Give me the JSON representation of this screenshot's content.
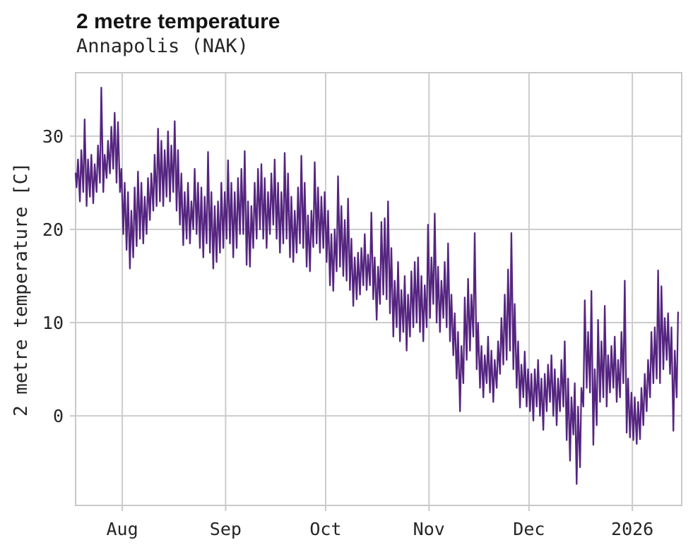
{
  "chart_data": {
    "type": "line",
    "title": "2 metre temperature",
    "subtitle": "Annapolis (NAK)",
    "ylabel": "2 metre temperature [C]",
    "xlabel": "",
    "legend": "none",
    "grid": true,
    "line_color": "#552580",
    "grid_color": "#cccccc",
    "background_color": "#ffffff",
    "x_unit": "days-since-series-start (series spans mid-July to mid-January)",
    "xlim_days": [
      0,
      181.8
    ],
    "ylim": [
      -9.6,
      36.8
    ],
    "y_ticks": [
      {
        "label": "0",
        "value": 0
      },
      {
        "label": "10",
        "value": 10
      },
      {
        "label": "20",
        "value": 20
      },
      {
        "label": "30",
        "value": 30
      }
    ],
    "x_ticks": [
      {
        "label": "Aug",
        "day": 14
      },
      {
        "label": "Sep",
        "day": 45
      },
      {
        "label": "Oct",
        "day": 75
      },
      {
        "label": "Nov",
        "day": 106
      },
      {
        "label": "Dec",
        "day": 136
      },
      {
        "label": "2026",
        "day": 167
      }
    ],
    "series_name": "2 metre temperature [C]",
    "daily_min_max_comment": "one [min,max] pair per day, day 0 = series start (~Jul 18); rendered as diurnal zigzag",
    "daily_min_max": [
      [
        24.5,
        27.5
      ],
      [
        23.0,
        28.5
      ],
      [
        24.0,
        31.8
      ],
      [
        22.5,
        27.5
      ],
      [
        23.5,
        28.0
      ],
      [
        22.8,
        27.0
      ],
      [
        24.0,
        29.0
      ],
      [
        25.0,
        35.2
      ],
      [
        24.0,
        28.0
      ],
      [
        25.5,
        29.5
      ],
      [
        26.0,
        31.0
      ],
      [
        26.5,
        32.5
      ],
      [
        25.0,
        31.5
      ],
      [
        24.0,
        26.5
      ],
      [
        19.5,
        25.0
      ],
      [
        17.8,
        24.0
      ],
      [
        15.8,
        22.0
      ],
      [
        17.0,
        24.5
      ],
      [
        18.2,
        26.2
      ],
      [
        19.0,
        25.0
      ],
      [
        18.5,
        23.5
      ],
      [
        19.5,
        25.5
      ],
      [
        21.0,
        26.0
      ],
      [
        22.0,
        28.0
      ],
      [
        22.5,
        30.8
      ],
      [
        23.0,
        29.5
      ],
      [
        22.5,
        28.5
      ],
      [
        23.5,
        30.5
      ],
      [
        23.0,
        29.0
      ],
      [
        24.0,
        31.6
      ],
      [
        22.0,
        28.5
      ],
      [
        20.5,
        26.0
      ],
      [
        18.3,
        24.0
      ],
      [
        19.0,
        25.0
      ],
      [
        18.5,
        23.0
      ],
      [
        20.0,
        26.5
      ],
      [
        19.5,
        25.0
      ],
      [
        18.0,
        24.5
      ],
      [
        17.0,
        23.5
      ],
      [
        18.5,
        28.3
      ],
      [
        17.5,
        24.0
      ],
      [
        15.8,
        22.5
      ],
      [
        16.5,
        23.0
      ],
      [
        17.5,
        25.0
      ],
      [
        18.0,
        24.0
      ],
      [
        19.0,
        27.4
      ],
      [
        18.5,
        25.0
      ],
      [
        17.0,
        24.0
      ],
      [
        18.0,
        25.5
      ],
      [
        19.5,
        26.5
      ],
      [
        19.5,
        28.4
      ],
      [
        16.2,
        23.0
      ],
      [
        16.0,
        22.5
      ],
      [
        18.0,
        25.0
      ],
      [
        19.0,
        26.5
      ],
      [
        20.0,
        27.0
      ],
      [
        19.0,
        25.5
      ],
      [
        18.0,
        24.0
      ],
      [
        19.5,
        26.0
      ],
      [
        20.5,
        27.5
      ],
      [
        19.0,
        25.0
      ],
      [
        17.5,
        24.0
      ],
      [
        18.5,
        28.2
      ],
      [
        19.0,
        26.0
      ],
      [
        17.0,
        23.5
      ],
      [
        16.5,
        22.0
      ],
      [
        17.5,
        24.5
      ],
      [
        18.5,
        27.9
      ],
      [
        18.0,
        25.0
      ],
      [
        16.0,
        21.5
      ],
      [
        15.5,
        22.0
      ],
      [
        18.1,
        27.2
      ],
      [
        18.5,
        24.5
      ],
      [
        17.5,
        23.5
      ],
      [
        18.0,
        24.0
      ],
      [
        16.5,
        22.0
      ],
      [
        14.0,
        19.5
      ],
      [
        13.4,
        20.0
      ],
      [
        15.5,
        25.7
      ],
      [
        16.0,
        22.5
      ],
      [
        15.0,
        21.0
      ],
      [
        14.5,
        23.3
      ],
      [
        13.5,
        19.0
      ],
      [
        11.8,
        17.0
      ],
      [
        12.5,
        17.5
      ],
      [
        13.0,
        18.0
      ],
      [
        14.0,
        19.5
      ],
      [
        13.5,
        17.3
      ],
      [
        14.0,
        21.8
      ],
      [
        12.5,
        17.0
      ],
      [
        10.3,
        16.0
      ],
      [
        12.0,
        20.8
      ],
      [
        13.0,
        21.2
      ],
      [
        12.5,
        23.0
      ],
      [
        11.0,
        18.0
      ],
      [
        8.5,
        14.5
      ],
      [
        9.5,
        16.5
      ],
      [
        8.0,
        13.5
      ],
      [
        9.0,
        15.0
      ],
      [
        7.0,
        13.0
      ],
      [
        8.5,
        15.5
      ],
      [
        9.5,
        16.5
      ],
      [
        10.0,
        17.0
      ],
      [
        9.0,
        15.0
      ],
      [
        8.0,
        14.0
      ],
      [
        9.5,
        20.5
      ],
      [
        10.5,
        17.0
      ],
      [
        12.0,
        21.7
      ],
      [
        10.0,
        16.0
      ],
      [
        9.0,
        14.5
      ],
      [
        10.5,
        16.5
      ],
      [
        9.5,
        18.5
      ],
      [
        8.0,
        13.0
      ],
      [
        6.5,
        11.0
      ],
      [
        4.0,
        9.0
      ],
      [
        0.5,
        7.5
      ],
      [
        3.5,
        12.7
      ],
      [
        6.0,
        14.7
      ],
      [
        7.0,
        13.0
      ],
      [
        8.5,
        19.6
      ],
      [
        5.0,
        10.0
      ],
      [
        3.0,
        7.5
      ],
      [
        2.0,
        6.5
      ],
      [
        3.5,
        8.5
      ],
      [
        2.5,
        7.0
      ],
      [
        1.5,
        6.0
      ],
      [
        3.0,
        8.0
      ],
      [
        4.5,
        10.5
      ],
      [
        5.5,
        13.0
      ],
      [
        6.0,
        15.7
      ],
      [
        7.0,
        19.6
      ],
      [
        5.0,
        12.0
      ],
      [
        3.0,
        8.0
      ],
      [
        0.9,
        5.5
      ],
      [
        2.0,
        6.9
      ],
      [
        1.0,
        5.0
      ],
      [
        0.5,
        4.5
      ],
      [
        -0.5,
        5.0
      ],
      [
        1.0,
        6.0
      ],
      [
        0.0,
        4.0
      ],
      [
        -1.5,
        4.5
      ],
      [
        0.5,
        5.5
      ],
      [
        1.5,
        6.5
      ],
      [
        0.0,
        5.0
      ],
      [
        -1.0,
        4.0
      ],
      [
        0.5,
        6.0
      ],
      [
        1.0,
        8.0
      ],
      [
        -2.6,
        4.0
      ],
      [
        -4.8,
        2.0
      ],
      [
        -2.0,
        3.5
      ],
      [
        -7.3,
        1.0
      ],
      [
        -5.5,
        3.0
      ],
      [
        1.0,
        12.4
      ],
      [
        3.0,
        9.0
      ],
      [
        2.5,
        13.4
      ],
      [
        -3.1,
        5.0
      ],
      [
        -1.0,
        10.3
      ],
      [
        1.5,
        8.0
      ],
      [
        2.0,
        11.8
      ],
      [
        1.0,
        6.5
      ],
      [
        2.5,
        7.5
      ],
      [
        3.0,
        8.5
      ],
      [
        1.5,
        6.0
      ],
      [
        2.0,
        9.0
      ],
      [
        3.5,
        14.5
      ],
      [
        -1.8,
        4.0
      ],
      [
        -2.3,
        2.5
      ],
      [
        -2.6,
        2.0
      ],
      [
        -3.0,
        1.5
      ],
      [
        -2.5,
        3.0
      ],
      [
        -1.0,
        4.5
      ],
      [
        0.5,
        6.0
      ],
      [
        2.0,
        9.0
      ],
      [
        3.5,
        9.5
      ],
      [
        4.0,
        15.6
      ],
      [
        3.5,
        13.9
      ],
      [
        5.0,
        10.5
      ],
      [
        6.0,
        11.0
      ],
      [
        4.5,
        9.5
      ],
      [
        -1.6,
        7.0
      ],
      [
        2.0,
        11.1
      ]
    ]
  }
}
